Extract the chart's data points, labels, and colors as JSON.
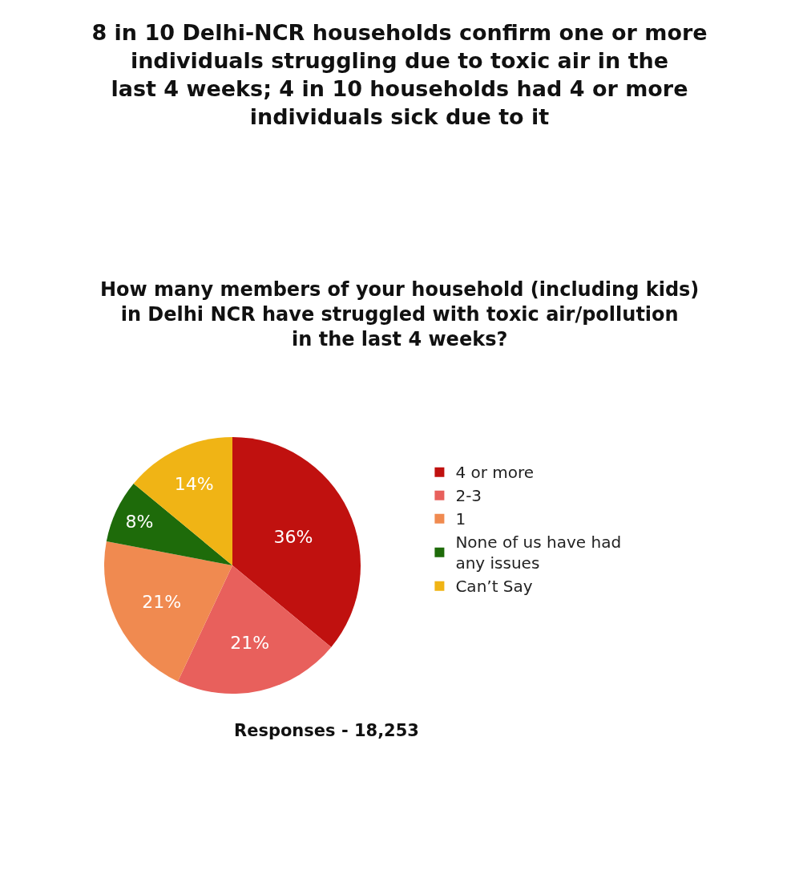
{
  "chart_data": {
    "type": "pie",
    "title": "8 in 10 Delhi-NCR households confirm one or more individuals struggling due to toxic air in the last 4 weeks; 4 in 10 households had 4 or more individuals sick due to it",
    "subtitle": "How many members of your household (including kids) in Delhi NCR have struggled with toxic air/pollution in the last 4 weeks?",
    "categories": [
      "4 or more",
      "2-3",
      "1",
      "None of us have had any issues",
      "Can’t Say"
    ],
    "values": [
      36,
      21,
      21,
      8,
      14
    ],
    "colors": [
      "#c0110f",
      "#e8605c",
      "#f08a50",
      "#1e6b0a",
      "#f0b415"
    ],
    "value_labels": [
      "36%",
      "21%",
      "21%",
      "8%",
      "14%"
    ],
    "legend": "right",
    "annotations": [
      "Responses - 18,253"
    ]
  }
}
